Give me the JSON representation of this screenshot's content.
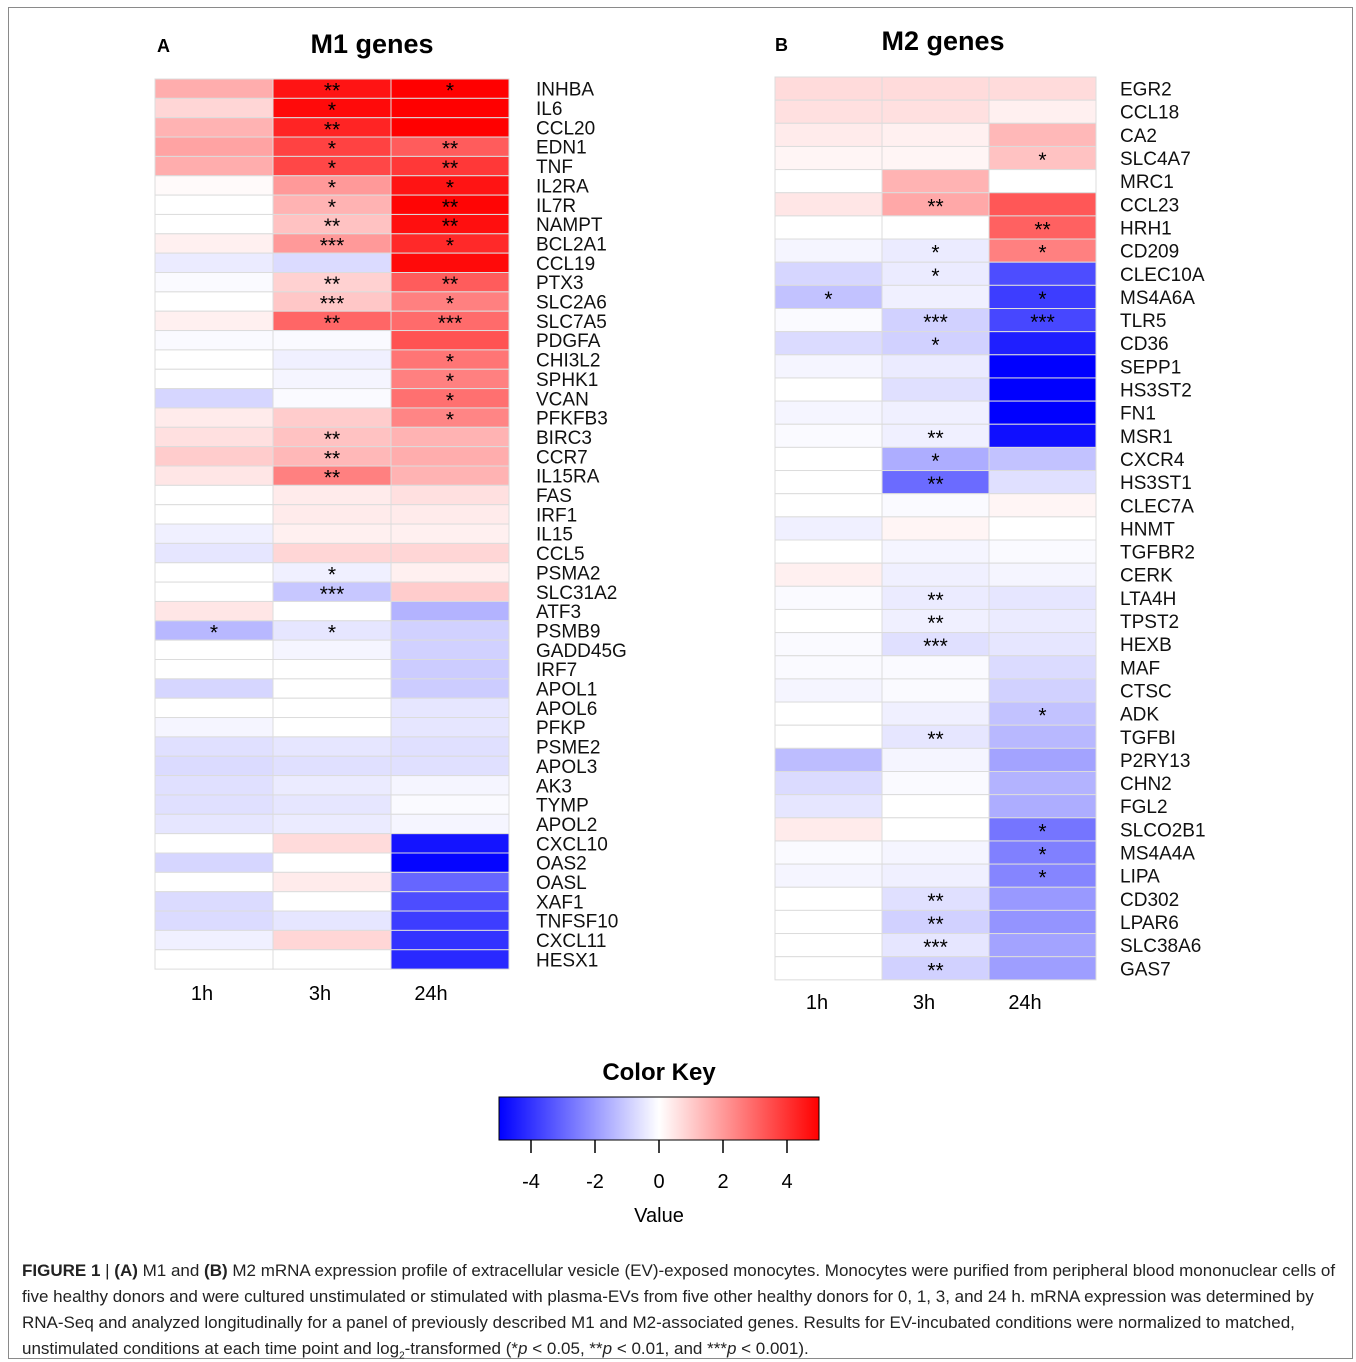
{
  "figure": {
    "caption": {
      "label": "FIGURE 1",
      "sep": " | ",
      "a": "(A)",
      "t1": " M1 and ",
      "b": "(B)",
      "t2": " M2 mRNA expression profile of extracellular vesicle (EV)-exposed monocytes. Monocytes were purified from peripheral blood mononuclear cells of five healthy donors and were cultured unstimulated or stimulated with plasma-EVs from five other healthy donors for 0, 1, 3, and 24 h. mRNA expression was determined by RNA-Seq and analyzed longitudinally for a panel of previously described M1 and M2-associated genes. Results for EV-incubated conditions were normalized to matched, unstimulated conditions at each time point and log",
      "sub": "2",
      "t3": "-transformed (*",
      "p1": "p",
      "t4": " < 0.05, **",
      "p2": "p",
      "t5": " < 0.01, and ***",
      "p3": "p",
      "t6": " < 0.001)."
    }
  },
  "chart_data": [
    {
      "type": "heatmap",
      "panel": "A",
      "title": "M1 genes",
      "columns": [
        "1h",
        "3h",
        "24h"
      ],
      "rows": [
        "INHBA",
        "IL6",
        "CCL20",
        "EDN1",
        "TNF",
        "IL2RA",
        "IL7R",
        "NAMPT",
        "BCL2A1",
        "CCL19",
        "PTX3",
        "SLC2A6",
        "SLC7A5",
        "PDGFA",
        "CHI3L2",
        "SPHK1",
        "VCAN",
        "PFKFB3",
        "BIRC3",
        "CCR7",
        "IL15RA",
        "FAS",
        "IRF1",
        "IL15",
        "CCL5",
        "PSMA2",
        "SLC31A2",
        "ATF3",
        "PSMB9",
        "GADD45G",
        "IRF7",
        "APOL1",
        "APOL6",
        "PFKP",
        "PSME2",
        "APOL3",
        "AK3",
        "TYMP",
        "APOL2",
        "CXCL10",
        "OAS2",
        "OASL",
        "XAF1",
        "TNFSF10",
        "CXCL11",
        "HESX1"
      ],
      "values": [
        [
          1.6,
          4.6,
          5.0
        ],
        [
          0.8,
          4.8,
          5.0
        ],
        [
          1.5,
          4.3,
          5.0
        ],
        [
          1.8,
          3.7,
          3.2
        ],
        [
          1.6,
          3.6,
          3.9
        ],
        [
          0.1,
          2.0,
          4.6
        ],
        [
          0.0,
          1.5,
          4.9
        ],
        [
          0.0,
          1.2,
          4.7
        ],
        [
          0.3,
          2.0,
          4.2
        ],
        [
          -0.4,
          -0.7,
          4.8
        ],
        [
          -0.1,
          0.9,
          3.2
        ],
        [
          0.0,
          1.1,
          2.5
        ],
        [
          0.3,
          3.0,
          2.9
        ],
        [
          -0.1,
          -0.1,
          3.4
        ],
        [
          0.0,
          -0.3,
          2.7
        ],
        [
          0.0,
          -0.2,
          2.5
        ],
        [
          -0.8,
          -0.1,
          2.8
        ],
        [
          0.4,
          1.0,
          2.4
        ],
        [
          0.6,
          1.2,
          1.5
        ],
        [
          1.0,
          1.4,
          1.6
        ],
        [
          0.5,
          2.5,
          1.5
        ],
        [
          0.0,
          0.4,
          0.6
        ],
        [
          0.0,
          0.4,
          0.4
        ],
        [
          -0.3,
          0.3,
          0.3
        ],
        [
          -0.5,
          0.8,
          0.8
        ],
        [
          0.0,
          -0.3,
          0.3
        ],
        [
          0.0,
          -1.1,
          1.0
        ],
        [
          0.5,
          0.0,
          -1.5
        ],
        [
          -1.4,
          -0.5,
          -0.9
        ],
        [
          0.0,
          -0.2,
          -0.9
        ],
        [
          0.0,
          0.0,
          -1.0
        ],
        [
          -0.8,
          0.0,
          -1.0
        ],
        [
          0.0,
          0.0,
          -0.5
        ],
        [
          -0.2,
          0.0,
          -0.5
        ],
        [
          -0.6,
          -0.5,
          -0.6
        ],
        [
          -0.7,
          -0.6,
          -0.6
        ],
        [
          -0.6,
          -0.4,
          -0.2
        ],
        [
          -0.6,
          -0.5,
          -0.1
        ],
        [
          -0.5,
          -0.4,
          -0.2
        ],
        [
          0.0,
          0.7,
          -4.6
        ],
        [
          -0.8,
          0.0,
          -4.9
        ],
        [
          0.0,
          0.4,
          -3.0
        ],
        [
          -0.7,
          0.0,
          -3.5
        ],
        [
          -0.7,
          -0.5,
          -3.8
        ],
        [
          -0.3,
          0.8,
          -4.0
        ],
        [
          0.0,
          0.0,
          -4.2
        ]
      ],
      "stars": [
        [
          "",
          "**",
          "*"
        ],
        [
          "",
          "*",
          ""
        ],
        [
          "",
          "**",
          ""
        ],
        [
          "",
          "*",
          "**"
        ],
        [
          "",
          "*",
          "**"
        ],
        [
          "",
          "*",
          "*"
        ],
        [
          "",
          "*",
          "**"
        ],
        [
          "",
          "**",
          "**"
        ],
        [
          "",
          "***",
          "*"
        ],
        [
          "",
          "",
          ""
        ],
        [
          "",
          "**",
          "**"
        ],
        [
          "",
          "***",
          "*"
        ],
        [
          "",
          "**",
          "***"
        ],
        [
          "",
          "",
          ""
        ],
        [
          "",
          "",
          "*"
        ],
        [
          "",
          "",
          "*"
        ],
        [
          "",
          "",
          "*"
        ],
        [
          "",
          "",
          "*"
        ],
        [
          "",
          "**",
          ""
        ],
        [
          "",
          "**",
          ""
        ],
        [
          "",
          "**",
          ""
        ],
        [
          "",
          "",
          ""
        ],
        [
          "",
          "",
          ""
        ],
        [
          "",
          "",
          ""
        ],
        [
          "",
          "",
          ""
        ],
        [
          "",
          "*",
          ""
        ],
        [
          "",
          "***",
          ""
        ],
        [
          "",
          "",
          ""
        ],
        [
          "*",
          "*",
          ""
        ],
        [
          "",
          "",
          ""
        ],
        [
          "",
          "",
          ""
        ],
        [
          "",
          "",
          ""
        ],
        [
          "",
          "",
          ""
        ],
        [
          "",
          "",
          ""
        ],
        [
          "",
          "",
          ""
        ],
        [
          "",
          "",
          ""
        ],
        [
          "",
          "",
          ""
        ],
        [
          "",
          "",
          ""
        ],
        [
          "",
          "",
          ""
        ],
        [
          "",
          "",
          ""
        ],
        [
          "",
          "",
          ""
        ],
        [
          "",
          "",
          ""
        ],
        [
          "",
          "",
          ""
        ],
        [
          "",
          "",
          ""
        ],
        [
          "",
          "",
          ""
        ],
        [
          "",
          "",
          ""
        ]
      ]
    },
    {
      "type": "heatmap",
      "panel": "B",
      "title": "M2 genes",
      "columns": [
        "1h",
        "3h",
        "24h"
      ],
      "rows": [
        "EGR2",
        "CCL18",
        "CA2",
        "SLC4A7",
        "MRC1",
        "CCL23",
        "HRH1",
        "CD209",
        "CLEC10A",
        "MS4A6A",
        "TLR5",
        "CD36",
        "SEPP1",
        "HS3ST2",
        "FN1",
        "MSR1",
        "CXCR4",
        "HS3ST1",
        "CLEC7A",
        "HNMT",
        "TGFBR2",
        "CERK",
        "LTA4H",
        "TPST2",
        "HEXB",
        "MAF",
        "CTSC",
        "ADK",
        "TGFBI",
        "P2RY13",
        "CHN2",
        "FGL2",
        "SLCO2B1",
        "MS4A4A",
        "LIPA",
        "CD302",
        "LPAR6",
        "SLC38A6",
        "GAS7"
      ],
      "values": [
        [
          0.7,
          0.7,
          0.7
        ],
        [
          0.6,
          0.6,
          0.3
        ],
        [
          0.4,
          0.3,
          1.4
        ],
        [
          0.2,
          0.2,
          1.2
        ],
        [
          0.0,
          1.5,
          0.0
        ],
        [
          0.5,
          1.7,
          3.3
        ],
        [
          0.0,
          0.0,
          3.1
        ],
        [
          -0.2,
          -0.4,
          2.5
        ],
        [
          -0.8,
          -0.4,
          -3.5
        ],
        [
          -1.2,
          -0.3,
          -3.8
        ],
        [
          -0.1,
          -0.9,
          -3.6
        ],
        [
          -0.7,
          -0.9,
          -4.4
        ],
        [
          -0.2,
          -0.4,
          -5.0
        ],
        [
          0.0,
          -0.6,
          -5.0
        ],
        [
          -0.2,
          -0.3,
          -5.0
        ],
        [
          -0.1,
          -0.3,
          -4.7
        ],
        [
          0.0,
          -1.6,
          -1.2
        ],
        [
          0.0,
          -2.9,
          -0.6
        ],
        [
          0.0,
          -0.1,
          0.2
        ],
        [
          -0.3,
          0.2,
          0.0
        ],
        [
          0.0,
          -0.2,
          -0.1
        ],
        [
          0.3,
          -0.3,
          -0.2
        ],
        [
          -0.1,
          -0.4,
          -0.5
        ],
        [
          0.0,
          -0.3,
          -0.4
        ],
        [
          -0.1,
          -0.6,
          -0.5
        ],
        [
          -0.1,
          -0.1,
          -0.7
        ],
        [
          -0.2,
          -0.1,
          -0.9
        ],
        [
          0.0,
          -0.3,
          -1.2
        ],
        [
          0.0,
          -0.5,
          -1.4
        ],
        [
          -1.3,
          -0.2,
          -1.8
        ],
        [
          -0.7,
          -0.1,
          -1.5
        ],
        [
          -0.5,
          0.0,
          -1.6
        ],
        [
          0.4,
          0.0,
          -2.7
        ],
        [
          -0.1,
          -0.2,
          -2.5
        ],
        [
          -0.2,
          -0.3,
          -2.4
        ],
        [
          0.0,
          -0.6,
          -2.0
        ],
        [
          0.0,
          -0.9,
          -2.1
        ],
        [
          0.0,
          -0.5,
          -1.8
        ],
        [
          0.0,
          -0.9,
          -1.9
        ]
      ],
      "stars": [
        [
          "",
          "",
          ""
        ],
        [
          "",
          "",
          ""
        ],
        [
          "",
          "",
          ""
        ],
        [
          "",
          "",
          "*"
        ],
        [
          "",
          "",
          ""
        ],
        [
          "",
          "**",
          ""
        ],
        [
          "",
          "",
          "**"
        ],
        [
          "",
          "*",
          "*"
        ],
        [
          "",
          "*",
          ""
        ],
        [
          "*",
          "",
          "*"
        ],
        [
          "",
          "***",
          "***"
        ],
        [
          "",
          "*",
          ""
        ],
        [
          "",
          "",
          ""
        ],
        [
          "",
          "",
          ""
        ],
        [
          "",
          "",
          ""
        ],
        [
          "",
          "**",
          ""
        ],
        [
          "",
          "*",
          ""
        ],
        [
          "",
          "**",
          ""
        ],
        [
          "",
          "",
          ""
        ],
        [
          "",
          "",
          ""
        ],
        [
          "",
          "",
          ""
        ],
        [
          "",
          "",
          ""
        ],
        [
          "",
          "**",
          ""
        ],
        [
          "",
          "**",
          ""
        ],
        [
          "",
          "***",
          ""
        ],
        [
          "",
          "",
          ""
        ],
        [
          "",
          "",
          ""
        ],
        [
          "",
          "",
          "*"
        ],
        [
          "",
          "**",
          ""
        ],
        [
          "",
          "",
          ""
        ],
        [
          "",
          "",
          ""
        ],
        [
          "",
          "",
          ""
        ],
        [
          "",
          "",
          "*"
        ],
        [
          "",
          "",
          "*"
        ],
        [
          "",
          "",
          "*"
        ],
        [
          "",
          "**",
          ""
        ],
        [
          "",
          "**",
          ""
        ],
        [
          "",
          "***",
          ""
        ],
        [
          "",
          "**",
          ""
        ]
      ]
    }
  ],
  "color_key": {
    "title": "Color Key",
    "xlabel": "Value",
    "ticks": [
      "-4",
      "-2",
      "0",
      "2",
      "4"
    ],
    "tick_values": [
      -4,
      -2,
      0,
      2,
      4
    ],
    "range": [
      -5,
      5
    ],
    "colors": {
      "low": "#0000ff",
      "mid": "#ffffff",
      "high": "#ff0000"
    }
  }
}
